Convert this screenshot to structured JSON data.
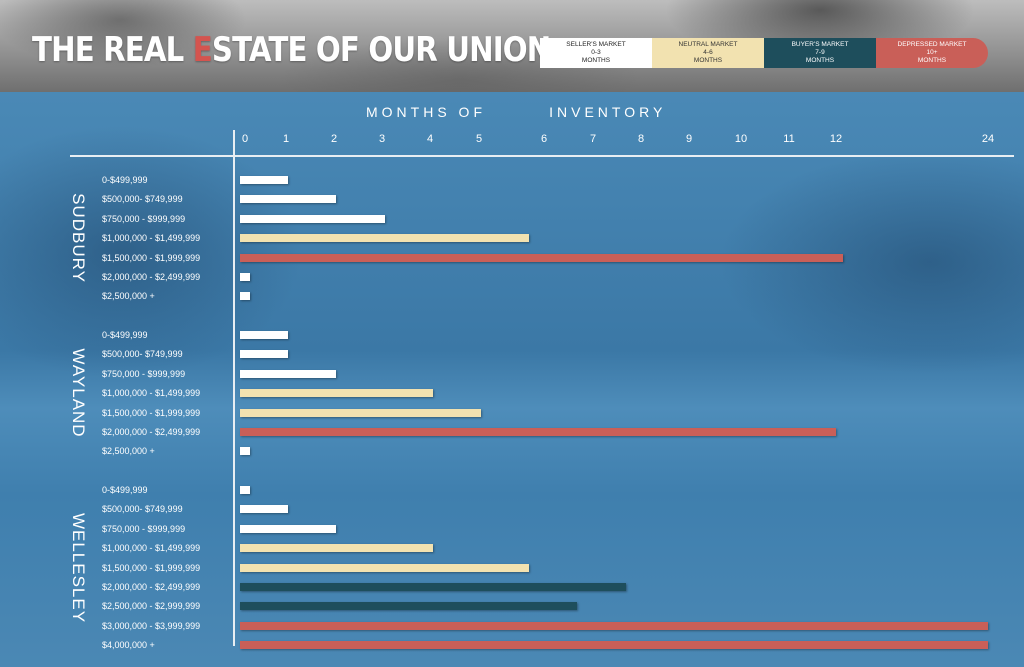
{
  "title": {
    "before": "THE REAL ",
    "highlight": "E",
    "after": "STATE OF OUR UNION"
  },
  "legend": [
    {
      "key": "seller",
      "l1": "SELLER'S MARKET",
      "l2": "0-3",
      "l3": "MONTHS",
      "bg": "#ffffff",
      "fg": "#222222"
    },
    {
      "key": "neutral",
      "l1": "NEUTRAL MARKET",
      "l2": "4-6",
      "l3": "MONTHS",
      "bg": "#f2e2b0",
      "fg": "#333333"
    },
    {
      "key": "buyer",
      "l1": "BUYER'S MARKET",
      "l2": "7-9",
      "l3": "MONTHS",
      "bg": "#1e4e5c",
      "fg": "#ffffff"
    },
    {
      "key": "depressed",
      "l1": "DEPRESSED MARKET",
      "l2": "10+",
      "l3": "MONTHS",
      "bg": "#c95f58",
      "fg": "#ffffff"
    }
  ],
  "colors": {
    "seller": "#ffffff",
    "neutral": "#f2e2b0",
    "buyer": "#1e4e5c",
    "depressed": "#c95f58"
  },
  "chart_data": {
    "type": "bar",
    "orientation": "horizontal",
    "axis_title": "MONTHS OF        INVENTORY",
    "x_ticks": [
      "0",
      "1",
      "2",
      "3",
      "4",
      "5",
      "6",
      "7",
      "8",
      "9",
      "10",
      "11",
      "12",
      "24"
    ],
    "groups": [
      {
        "name": "SUDBURY",
        "bars": [
          {
            "label": "0-$499,999",
            "value": 1,
            "market": "seller"
          },
          {
            "label": "$500,000- $749,999",
            "value": 2,
            "market": "seller"
          },
          {
            "label": "$750,000 - $999,999",
            "value": 3,
            "market": "seller"
          },
          {
            "label": "$1,000,000 - $1,499,999",
            "value": 6,
            "market": "neutral"
          },
          {
            "label": "$1,500,000 - $1,999,999",
            "value": 13.3,
            "market": "depressed"
          },
          {
            "label": "$2,000,000 - $2,499,999",
            "value": 0.2,
            "market": "seller"
          },
          {
            "label": "$2,500,000 +",
            "value": 0.2,
            "market": "seller"
          }
        ]
      },
      {
        "name": "WAYLAND",
        "bars": [
          {
            "label": "0-$499,999",
            "value": 1,
            "market": "seller"
          },
          {
            "label": "$500,000- $749,999",
            "value": 1,
            "market": "seller"
          },
          {
            "label": "$750,000 - $999,999",
            "value": 2,
            "market": "seller"
          },
          {
            "label": "$1,000,000 - $1,499,999",
            "value": 4,
            "market": "neutral"
          },
          {
            "label": "$1,500,000 - $1,999,999",
            "value": 5,
            "market": "neutral"
          },
          {
            "label": "$2,000,000 - $2,499,999",
            "value": 12.8,
            "market": "depressed"
          },
          {
            "label": "$2,500,000 +",
            "value": 0.2,
            "market": "seller"
          }
        ]
      },
      {
        "name": "WELLESLEY",
        "bars": [
          {
            "label": "0-$499,999",
            "value": 0.2,
            "market": "seller"
          },
          {
            "label": "$500,000- $749,999",
            "value": 1,
            "market": "seller"
          },
          {
            "label": "$750,000 - $999,999",
            "value": 2,
            "market": "seller"
          },
          {
            "label": "$1,000,000 - $1,499,999",
            "value": 4,
            "market": "neutral"
          },
          {
            "label": "$1,500,000 - $1,999,999",
            "value": 6,
            "market": "neutral"
          },
          {
            "label": "$2,000,000 - $2,499,999",
            "value": 8,
            "market": "buyer"
          },
          {
            "label": "$2,500,000 - $2,999,999",
            "value": 7,
            "market": "buyer"
          },
          {
            "label": "$3,000,000 - $3,999,999",
            "value": 24,
            "market": "depressed"
          },
          {
            "label": "$4,000,000 +",
            "value": 24,
            "market": "depressed"
          }
        ]
      }
    ]
  }
}
